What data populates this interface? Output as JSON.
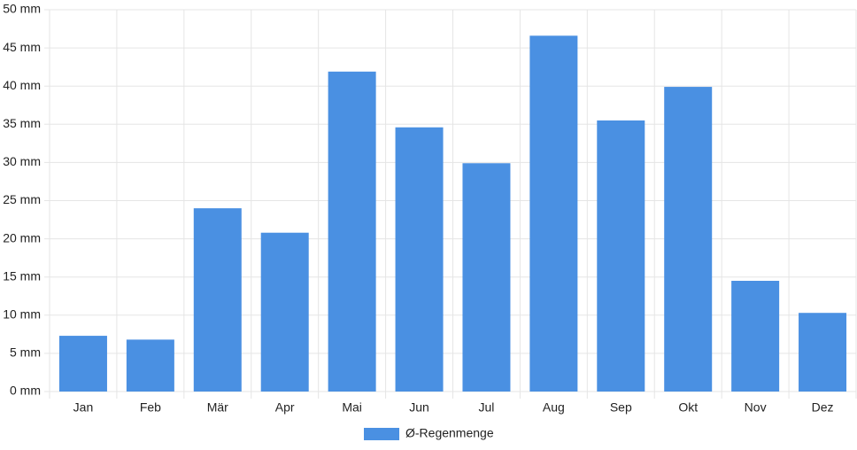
{
  "chart_data": {
    "type": "bar",
    "categories": [
      "Jan",
      "Feb",
      "Mär",
      "Apr",
      "Mai",
      "Jun",
      "Jul",
      "Aug",
      "Sep",
      "Okt",
      "Nov",
      "Dez"
    ],
    "series": [
      {
        "name": "Ø-Regenmenge",
        "color": "#4a90e2",
        "values": [
          7.3,
          6.8,
          24.0,
          20.8,
          41.9,
          34.6,
          29.9,
          46.6,
          35.5,
          39.9,
          14.5,
          10.3
        ]
      }
    ],
    "ylim": [
      0,
      50
    ],
    "yticks": [
      {
        "value": 0,
        "label": "0 mm"
      },
      {
        "value": 5,
        "label": "5 mm"
      },
      {
        "value": 10,
        "label": "10 mm"
      },
      {
        "value": 15,
        "label": "15 mm"
      },
      {
        "value": 20,
        "label": "20 mm"
      },
      {
        "value": 25,
        "label": "25 mm"
      },
      {
        "value": 30,
        "label": "30 mm"
      },
      {
        "value": 35,
        "label": "35 mm"
      },
      {
        "value": 40,
        "label": "40 mm"
      },
      {
        "value": 45,
        "label": "45 mm"
      },
      {
        "value": 50,
        "label": "50 mm"
      }
    ],
    "grid": true,
    "legend": "bottom"
  }
}
